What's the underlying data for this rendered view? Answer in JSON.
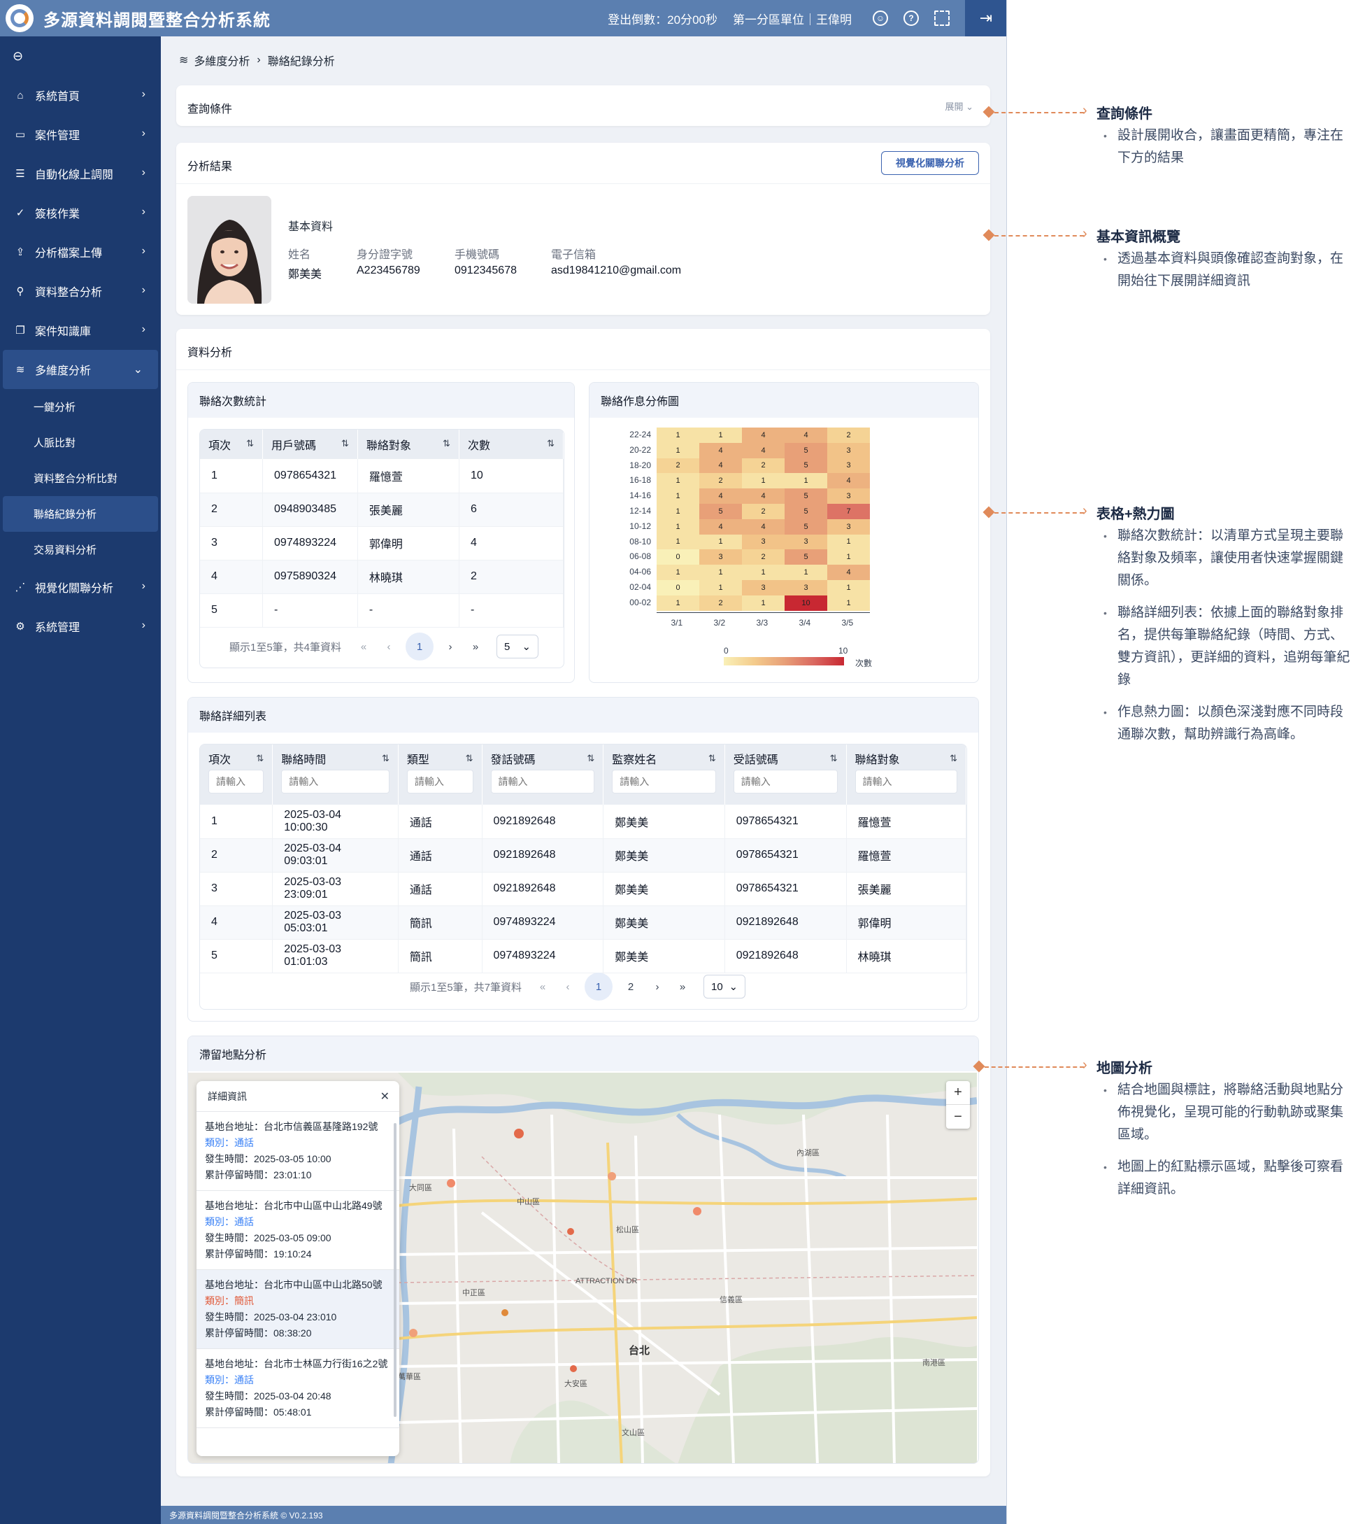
{
  "app": {
    "title": "多源資料調閱暨整合分析系統",
    "countdown": "登出倒數：20分00秒",
    "unit": "第一分區單位｜王偉明",
    "footer": "多源資料調閱暨整合分析系統 © V0.2.193"
  },
  "sidebar": {
    "items": [
      {
        "label": "系統首頁",
        "icon": "home-icon"
      },
      {
        "label": "案件管理",
        "icon": "folder-icon"
      },
      {
        "label": "自動化線上調閱",
        "icon": "list-icon"
      },
      {
        "label": "簽核作業",
        "icon": "check-circle-icon"
      },
      {
        "label": "分析檔案上傳",
        "icon": "file-upload-icon"
      },
      {
        "label": "資料整合分析",
        "icon": "user-search-icon"
      },
      {
        "label": "案件知識庫",
        "icon": "book-icon"
      },
      {
        "label": "多維度分析",
        "icon": "layers-icon"
      }
    ],
    "sub_items": [
      "一鍵分析",
      "人脈比對",
      "資料整合分析比對",
      "聯絡紀錄分析",
      "交易資料分析"
    ],
    "after_items": [
      {
        "label": "視覺化關聯分析",
        "icon": "network-icon"
      },
      {
        "label": "系統管理",
        "icon": "gear-icon"
      }
    ]
  },
  "breadcrumb": {
    "parent": "多維度分析",
    "current": "聯絡紀錄分析"
  },
  "query": {
    "title": "查詢條件",
    "expand": "展開"
  },
  "result": {
    "title": "分析結果",
    "viz_button": "視覺化關聯分析",
    "basic_title": "基本資料",
    "fields": [
      {
        "label": "姓名",
        "value": "鄭美美"
      },
      {
        "label": "身分證字號",
        "value": "A223456789"
      },
      {
        "label": "手機號碼",
        "value": "0912345678"
      },
      {
        "label": "電子信箱",
        "value": "asd19841210@gmail.com"
      }
    ]
  },
  "analysis": {
    "title": "資料分析"
  },
  "contact_stats": {
    "title": "聯絡次數統計",
    "headers": [
      "項次",
      "用戶號碼",
      "聯絡對象",
      "次數"
    ],
    "rows": [
      [
        "1",
        "0978654321",
        "羅憶萱",
        "10"
      ],
      [
        "2",
        "0948903485",
        "張美麗",
        "6"
      ],
      [
        "3",
        "0974893224",
        "郭偉明",
        "4"
      ],
      [
        "4",
        "0975890324",
        "林曉琪",
        "2"
      ],
      [
        "5",
        "-",
        "-",
        "-"
      ]
    ],
    "pager_text": "顯示1至5筆，共4筆資料",
    "page": "1",
    "page_size": "5"
  },
  "heatmap": {
    "title": "聯絡作息分佈圖",
    "legend_min": "0",
    "legend_max": "10",
    "legend_label": "次數"
  },
  "chart_data": {
    "type": "heatmap",
    "title": "聯絡作息分佈圖",
    "x": [
      "3/1",
      "3/2",
      "3/3",
      "3/4",
      "3/5"
    ],
    "y": [
      "22-24",
      "20-22",
      "18-20",
      "16-18",
      "14-16",
      "12-14",
      "10-12",
      "08-10",
      "06-08",
      "04-06",
      "02-04",
      "00-02"
    ],
    "values": [
      [
        1,
        1,
        4,
        4,
        2
      ],
      [
        1,
        4,
        4,
        5,
        3
      ],
      [
        2,
        4,
        2,
        5,
        3
      ],
      [
        1,
        2,
        1,
        1,
        4
      ],
      [
        1,
        4,
        4,
        5,
        3
      ],
      [
        1,
        5,
        2,
        5,
        7
      ],
      [
        1,
        4,
        4,
        5,
        3
      ],
      [
        1,
        1,
        3,
        3,
        1
      ],
      [
        0,
        3,
        2,
        5,
        1
      ],
      [
        1,
        1,
        1,
        1,
        4
      ],
      [
        0,
        1,
        3,
        3,
        1
      ],
      [
        1,
        2,
        1,
        10,
        1
      ]
    ],
    "zlim": [
      0,
      10
    ],
    "legend_label": "次數"
  },
  "detail": {
    "title": "聯絡詳細列表",
    "headers": [
      "項次",
      "聯絡時間",
      "類型",
      "發話號碼",
      "監察姓名",
      "受話號碼",
      "聯絡對象"
    ],
    "placeholder": "請輸入",
    "rows": [
      [
        "1",
        "2025-03-04 10:00:30",
        "通話",
        "0921892648",
        "鄭美美",
        "0978654321",
        "羅憶萱"
      ],
      [
        "2",
        "2025-03-04 09:03:01",
        "通話",
        "0921892648",
        "鄭美美",
        "0978654321",
        "羅憶萱"
      ],
      [
        "3",
        "2025-03-03 23:09:01",
        "通話",
        "0921892648",
        "鄭美美",
        "0978654321",
        "張美麗"
      ],
      [
        "4",
        "2025-03-03 05:03:01",
        "簡訊",
        "0974893224",
        "鄭美美",
        "0921892648",
        "郭偉明"
      ],
      [
        "5",
        "2025-03-03 01:01:03",
        "簡訊",
        "0974893224",
        "鄭美美",
        "0921892648",
        "林曉琪"
      ]
    ],
    "pager_text": "顯示1至5筆，共7筆資料",
    "page": "1",
    "page2": "2",
    "page_size": "10"
  },
  "map": {
    "title": "滯留地點分析",
    "popup_title": "詳細資訊",
    "entries": [
      {
        "addr": "基地台地址：台北市信義區基隆路192號",
        "type": "類別：通話",
        "time": "發生時間：2025-03-05 10:00",
        "stay": "累計停留時間：23:01:10"
      },
      {
        "addr": "基地台地址：台北市中山區中山北路49號",
        "type": "類別：通話",
        "time": "發生時間：2025-03-05 09:00",
        "stay": "累計停留時間：19:10:24"
      },
      {
        "addr": "基地台地址：台北市中山區中山北路50號",
        "type": "類別：簡訊",
        "time": "發生時間：2025-03-04 23:010",
        "stay": "累計停留時間：08:38:20"
      },
      {
        "addr": "基地台地址：台北市士林區力行街16之2號",
        "type": "類別：通話",
        "time": "發生時間：2025-03-04 20:48",
        "stay": "累計停留時間：05:48:01"
      }
    ],
    "zoom_in": "+",
    "zoom_out": "−",
    "labels": {
      "taipei": "台北",
      "songshan": "松山區",
      "zhongzheng": "中正區",
      "daan": "大安區",
      "xinyi": "信義區",
      "neihu": "內湖區",
      "nangang": "南港區",
      "datong": "大同區",
      "zhongshan": "中山區",
      "wanhua": "萬華區",
      "wenshan": "文山區",
      "attraction": "ATTRACTION DR"
    }
  },
  "annotations": [
    {
      "title": "查詢條件",
      "bullets": [
        "設計展開收合，讓畫面更精簡，專注在下方的結果"
      ]
    },
    {
      "title": "基本資訊概覽",
      "bullets": [
        "透過基本資料與頭像確認查詢對象，在開始往下展開詳細資訊"
      ]
    },
    {
      "title": "表格+熱力圖",
      "bullets": [
        "聯絡次數統計：以清單方式呈現主要聯絡對象及頻率，讓使用者快速掌握關鍵關係。",
        "聯絡詳細列表：依據上面的聯絡對象排名，提供每筆聯絡紀錄（時間、方式、雙方資訊），更詳細的資料，追朔每筆紀錄",
        "作息熱力圖：以顏色深淺對應不同時段通聯次數，幫助辨識行為高峰。"
      ]
    },
    {
      "title": "地圖分析",
      "bullets": [
        "結合地圖與標註，將聯絡活動與地點分佈視覺化，呈現可能的行動軌跡或聚集區域。",
        "地圖上的紅點標示區域，點擊後可察看詳細資訊。"
      ]
    }
  ],
  "colors": {
    "primary": "#1c3a6e",
    "topbar": "#5b7fb0",
    "accent": "#e08a5a",
    "link": "#3b63b0"
  }
}
